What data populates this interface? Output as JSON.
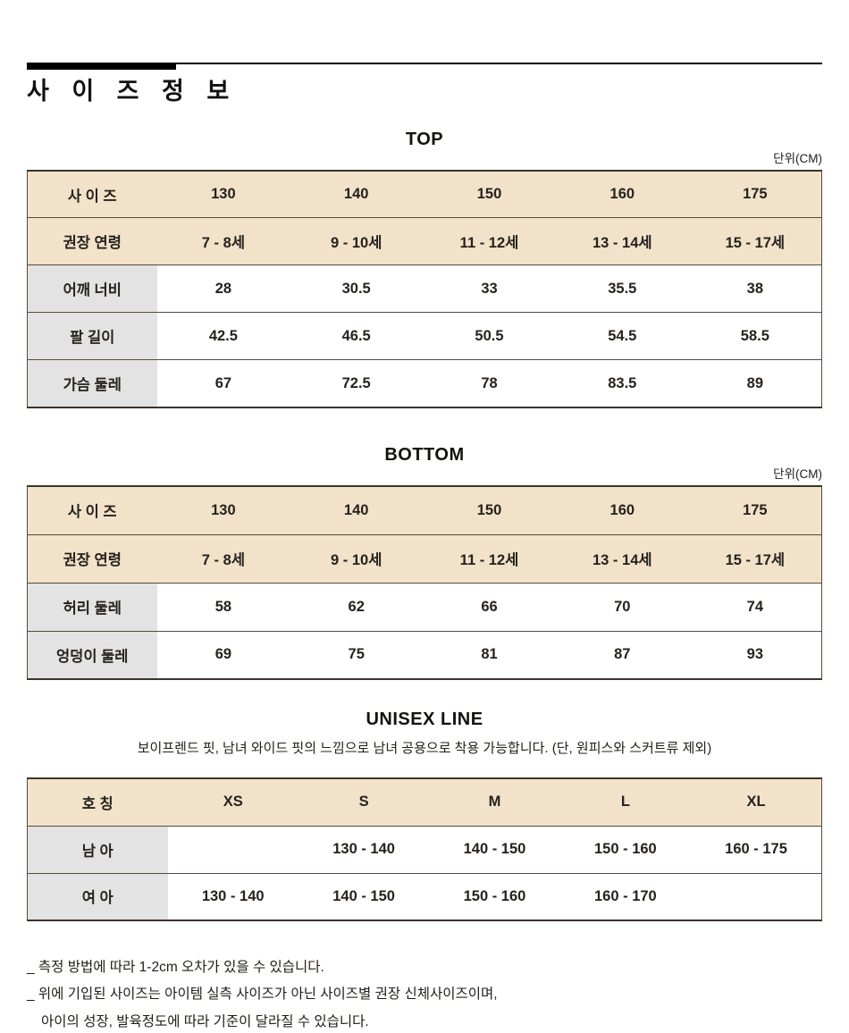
{
  "header": {
    "title": "사 이 즈 정 보"
  },
  "sections": {
    "top": {
      "heading": "TOP",
      "unit": "단위(CM)",
      "table": {
        "header_rows": [
          [
            "사 이 즈",
            "130",
            "140",
            "150",
            "160",
            "175"
          ],
          [
            "권장 연령",
            "7 - 8세",
            "9 - 10세",
            "11 - 12세",
            "13 - 14세",
            "15 - 17세"
          ]
        ],
        "body_rows": [
          [
            "어깨 너비",
            "28",
            "30.5",
            "33",
            "35.5",
            "38"
          ],
          [
            "팔 길이",
            "42.5",
            "46.5",
            "50.5",
            "54.5",
            "58.5"
          ],
          [
            "가슴 둘레",
            "67",
            "72.5",
            "78",
            "83.5",
            "89"
          ]
        ]
      }
    },
    "bottom": {
      "heading": "BOTTOM",
      "unit": "단위(CM)",
      "table": {
        "header_rows": [
          [
            "사 이 즈",
            "130",
            "140",
            "150",
            "160",
            "175"
          ],
          [
            "권장 연령",
            "7 - 8세",
            "9 - 10세",
            "11 - 12세",
            "13 - 14세",
            "15 - 17세"
          ]
        ],
        "body_rows": [
          [
            "허리 둘레",
            "58",
            "62",
            "66",
            "70",
            "74"
          ],
          [
            "엉덩이 둘레",
            "69",
            "75",
            "81",
            "87",
            "93"
          ]
        ]
      }
    },
    "unisex": {
      "heading": "UNISEX LINE",
      "subtitle": "보이프렌드 핏, 남녀 와이드 핏의 느낌으로 남녀 공용으로 착용 가능합니다. (단, 원피스와 스커트류 제외)",
      "table": {
        "header_rows": [
          [
            "호 칭",
            "XS",
            "S",
            "M",
            "L",
            "XL"
          ]
        ],
        "body_rows": [
          [
            "남 아",
            "",
            "130 - 140",
            "140 - 150",
            "150 - 160",
            "160 - 175"
          ],
          [
            "여 아",
            "130 - 140",
            "140 - 150",
            "150 - 160",
            "160 - 170",
            ""
          ]
        ]
      }
    }
  },
  "notes": [
    "_ 측정 방법에 따라 1-2cm 오차가 있을 수 있습니다.",
    "_ 위에 기입된 사이즈는 아이템  실측 사이즈가 아닌 사이즈별 권장 신체사이즈이며,",
    "아이의 성장, 발육정도에 따라 기준이 달라질 수 있습니다."
  ],
  "colors": {
    "header_row_bg": "#F1E2C9",
    "label_col_bg": "#E3E3E3",
    "table_line": "#554A3E",
    "accent_bar": "#000000"
  }
}
